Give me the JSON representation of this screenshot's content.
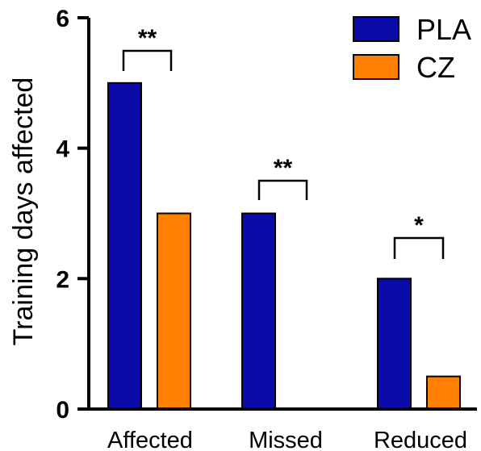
{
  "chart_data": {
    "type": "bar",
    "title": "",
    "xlabel": "",
    "ylabel": "Training days affected",
    "ylim": [
      0,
      6
    ],
    "yticks": [
      "0",
      "2",
      "4",
      "6"
    ],
    "categories": [
      "Affected",
      "Missed",
      "Reduced"
    ],
    "series": [
      {
        "name": "PLA",
        "color": "#0a0aa8",
        "values": [
          5,
          3,
          2
        ]
      },
      {
        "name": "CZ",
        "color": "#ff8000",
        "values": [
          3,
          0,
          0.5
        ]
      }
    ],
    "significance": [
      "**",
      "**",
      "*"
    ],
    "legend_position": "top-right",
    "grid": false
  }
}
